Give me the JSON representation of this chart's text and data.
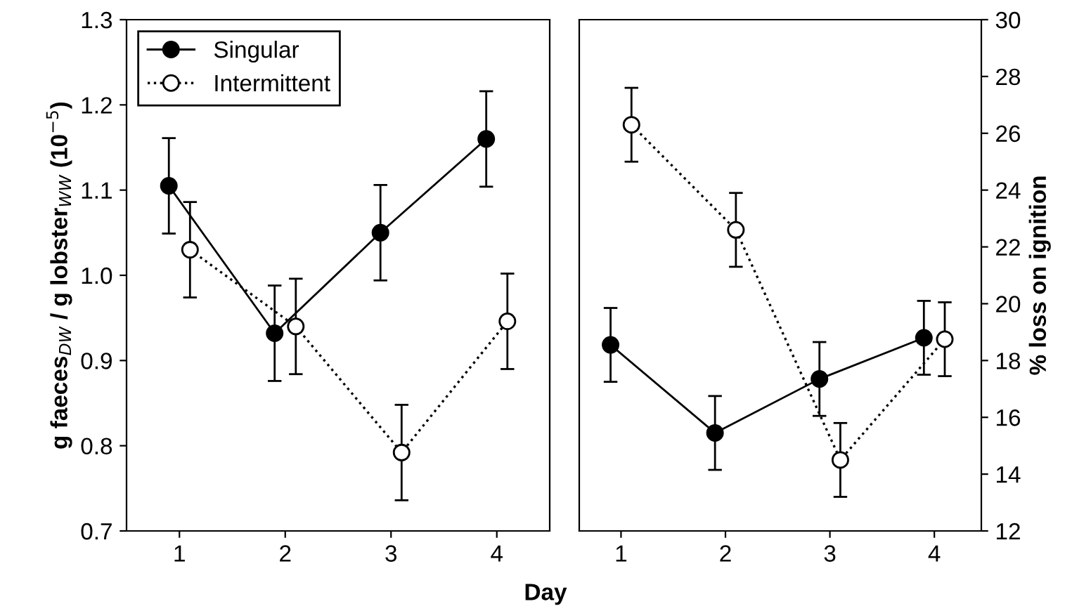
{
  "chart_data": [
    {
      "type": "line",
      "xlabel": "Day",
      "ylabel": "g faeces$_{DW}$ / g lobster$_{WW}$ (10$^{−5}$)",
      "xlim": [
        0.5,
        4.5
      ],
      "xticks": [
        1,
        2,
        3,
        4
      ],
      "ylim": [
        0.7,
        1.3
      ],
      "yticks": [
        0.7,
        0.8,
        0.9,
        {
          "value": 1,
          "label": "1.0"
        },
        1.1,
        1.2,
        1.3
      ],
      "grid": false,
      "legend": "top left",
      "marker": "circle",
      "series": [
        {
          "name": "Singular",
          "color": "#000000",
          "line_style": "solid",
          "x": [
            0.9,
            1.9,
            2.9,
            3.9
          ],
          "values": [
            1.105,
            0.932,
            1.05,
            1.16
          ],
          "errors": [
            0.056,
            0.056,
            0.056,
            0.056
          ]
        },
        {
          "name": "Intermittent",
          "color": "#000000",
          "line_style": "dotted",
          "x": [
            1.1,
            2.1,
            3.1,
            4.1
          ],
          "values": [
            1.03,
            0.94,
            0.792,
            0.946
          ],
          "errors": [
            0.056,
            0.056,
            0.056,
            0.056
          ]
        }
      ]
    },
    {
      "type": "line",
      "ylabel": "% loss on ignition",
      "xlim": [
        0.6,
        4.45
      ],
      "xticks": [
        1,
        2,
        3,
        4
      ],
      "ylim": [
        12,
        30
      ],
      "yticks": [
        12,
        14,
        16,
        18,
        20,
        22,
        24,
        26,
        28,
        30
      ],
      "grid": false,
      "marker": "circle",
      "series": [
        {
          "color": "#000000",
          "line_style": "solid",
          "x": [
            0.9,
            1.9,
            2.9,
            3.9
          ],
          "values": [
            18.55,
            15.45,
            17.35,
            18.8
          ],
          "errors": [
            1.3,
            1.3,
            1.3,
            1.3
          ]
        },
        {
          "color": "#000000",
          "line_style": "dotted",
          "x": [
            1.1,
            2.1,
            3.1,
            4.1
          ],
          "values": [
            26.3,
            22.6,
            14.5,
            18.75
          ],
          "errors": [
            1.3,
            1.3,
            1.3,
            1.3
          ]
        }
      ]
    }
  ]
}
